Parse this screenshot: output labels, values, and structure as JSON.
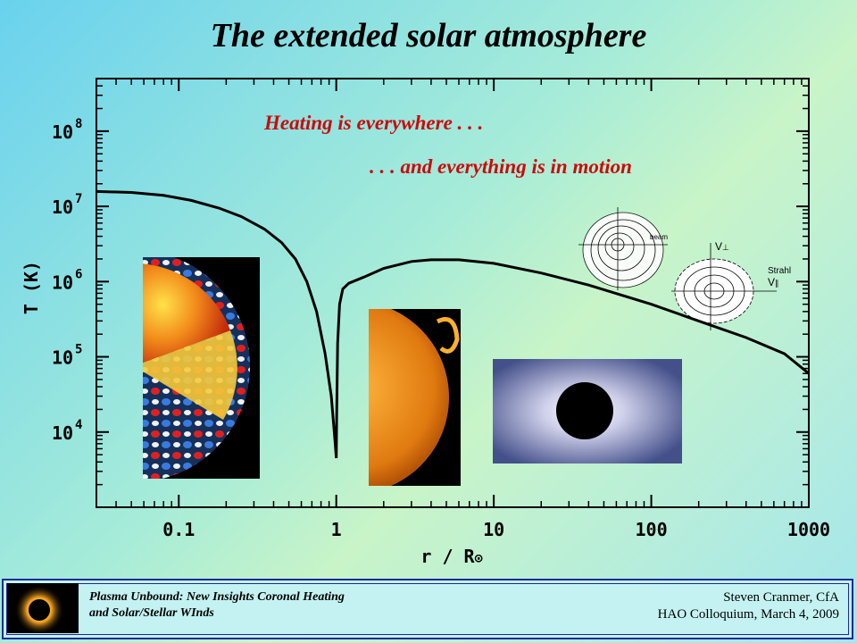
{
  "slide": {
    "title": "The extended solar atmosphere"
  },
  "annotations": {
    "heating": "Heating is everywhere . . .",
    "motion": ". . . and everything is in motion"
  },
  "inset_labels": {
    "beam": "beam",
    "strahl": "Strahl",
    "v_perp": "V",
    "v_perp_sub": "⊥",
    "v_par": "V",
    "v_par_sub": "∥"
  },
  "chart_data": {
    "type": "line",
    "title": "",
    "xlabel": "r / R",
    "xlabel_symbol": "⊙",
    "ylabel": "T (K)",
    "xscale": "log",
    "yscale": "log",
    "xlim": [
      0.03,
      1000
    ],
    "ylim": [
      1000,
      500000000
    ],
    "x_ticks": [
      {
        "value": 0.1,
        "label": "0.1"
      },
      {
        "value": 1,
        "label": "1"
      },
      {
        "value": 10,
        "label": "10"
      },
      {
        "value": 100,
        "label": "100"
      },
      {
        "value": 1000,
        "label": "1000"
      }
    ],
    "y_ticks": [
      {
        "value": 10000,
        "base": "10",
        "exp": "4"
      },
      {
        "value": 100000,
        "base": "10",
        "exp": "5"
      },
      {
        "value": 1000000,
        "base": "10",
        "exp": "6"
      },
      {
        "value": 10000000,
        "base": "10",
        "exp": "7"
      },
      {
        "value": 100000000,
        "base": "10",
        "exp": "8"
      }
    ],
    "grid": false,
    "series": [
      {
        "color": "#000000",
        "points": [
          [
            0.03,
            15800000
          ],
          [
            0.05,
            15300000
          ],
          [
            0.08,
            14000000
          ],
          [
            0.12,
            12000000
          ],
          [
            0.18,
            9500000
          ],
          [
            0.25,
            7300000
          ],
          [
            0.35,
            5000000
          ],
          [
            0.45,
            3300000
          ],
          [
            0.55,
            2000000
          ],
          [
            0.65,
            1000000
          ],
          [
            0.75,
            400000
          ],
          [
            0.85,
            110000
          ],
          [
            0.93,
            30000
          ],
          [
            0.98,
            8000
          ],
          [
            1.0,
            4500
          ],
          [
            1.005,
            15000
          ],
          [
            1.02,
            150000
          ],
          [
            1.05,
            500000
          ],
          [
            1.1,
            800000
          ],
          [
            1.2,
            950000
          ],
          [
            1.5,
            1150000
          ],
          [
            2,
            1500000
          ],
          [
            3,
            1850000
          ],
          [
            4,
            1950000
          ],
          [
            6,
            1950000
          ],
          [
            10,
            1750000
          ],
          [
            20,
            1300000
          ],
          [
            40,
            900000
          ],
          [
            100,
            500000
          ],
          [
            200,
            300000
          ],
          [
            400,
            180000
          ],
          [
            700,
            110000
          ],
          [
            1000,
            60000
          ]
        ]
      }
    ]
  },
  "footer": {
    "left_line1": "Plasma Unbound:  New Insights Coronal Heating",
    "left_line2": "and Solar/Stellar WInds",
    "right_line1": "Steven Cranmer,  CfA",
    "right_line2": "HAO Colloquium, March 4, 2009"
  }
}
